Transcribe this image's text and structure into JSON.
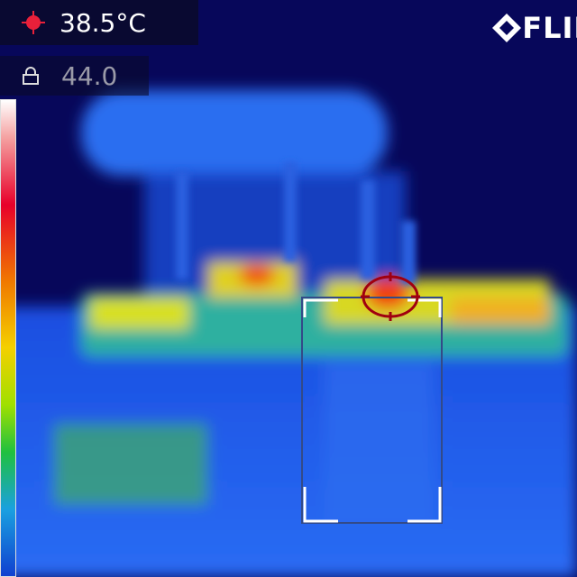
{
  "spot_temperature": "38.5°C",
  "lock_value": "44.0",
  "brand": "FLIR"
}
